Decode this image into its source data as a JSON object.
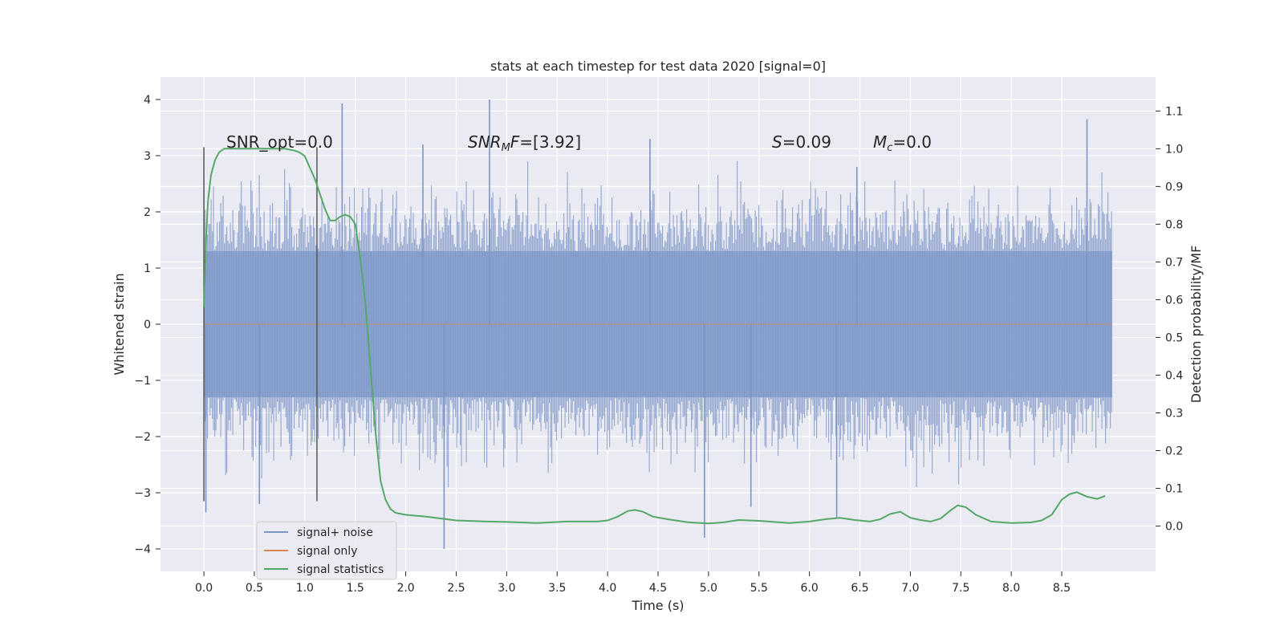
{
  "chart_data": {
    "type": "line",
    "title": "stats at each timestep for test data 2020 [signal=0]",
    "xlabel": "Time (s)",
    "ylabel": "Whitened strain",
    "y2label": "Detection probability/MF",
    "xlim": [
      -0.43,
      9.43
    ],
    "ylim": [
      -4.4,
      4.4
    ],
    "y2lim": [
      -0.12,
      1.19
    ],
    "x_ticks": [
      0.0,
      0.5,
      1.0,
      1.5,
      2.0,
      2.5,
      3.0,
      3.5,
      4.0,
      4.5,
      5.0,
      5.5,
      6.0,
      6.5,
      7.0,
      7.5,
      8.0,
      8.5
    ],
    "x_tick_labels": [
      "0.0",
      "0.5",
      "1.0",
      "1.5",
      "2.0",
      "2.5",
      "3.0",
      "3.5",
      "4.0",
      "4.5",
      "5.0",
      "5.5",
      "6.0",
      "6.5",
      "7.0",
      "7.5",
      "8.0",
      "8.5"
    ],
    "y_ticks": [
      4,
      3,
      2,
      1,
      0,
      -1,
      -2,
      -3,
      -4
    ],
    "y_tick_labels": [
      "4",
      "3",
      "2",
      "1",
      "0",
      "−1",
      "−2",
      "−3",
      "−4"
    ],
    "y2_ticks": [
      1.1,
      1.0,
      0.9,
      0.8,
      0.7,
      0.6,
      0.5,
      0.4,
      0.3,
      0.2,
      0.1,
      0.0
    ],
    "y2_tick_labels": [
      "1.1",
      "1.0",
      "0.9",
      "0.8",
      "0.7",
      "0.6",
      "0.5",
      "0.4",
      "0.3",
      "0.2",
      "0.1",
      "0.0"
    ],
    "grid": true,
    "legend_position": "lower-left",
    "annotations": {
      "snr_opt": "SNR_opt=0.0",
      "snr_mf_prefix": "SNR",
      "snr_mf_sub": "M",
      "snr_mf_suffix": "F=[3.92]",
      "s_prefix": "S",
      "s_value": "=0.09",
      "mc_prefix": "M",
      "mc_sub": "c",
      "mc_value": "=0.0"
    },
    "vertical_lines": [
      {
        "x": 0.0,
        "y_range": [
          -3.15,
          3.15
        ],
        "color": "#555555"
      },
      {
        "x": 1.12,
        "y_range": [
          -3.15,
          3.15
        ],
        "color": "#555555"
      }
    ],
    "series": [
      {
        "name": "signal+ noise",
        "color": "#7b95c7",
        "axis": "left",
        "kind": "noise",
        "x_range": [
          0.0,
          9.0
        ],
        "core_band": [
          -1.3,
          1.3
        ],
        "typical_peak_range": [
          -2.4,
          2.4
        ],
        "extreme_peaks": [
          {
            "x": 0.02,
            "y": -3.35
          },
          {
            "x": 1.37,
            "y": 3.93
          },
          {
            "x": 2.83,
            "y": 4.0
          },
          {
            "x": 2.38,
            "y": -4.0
          },
          {
            "x": 8.75,
            "y": 3.65
          },
          {
            "x": 4.42,
            "y": 3.3
          },
          {
            "x": 4.96,
            "y": -3.8
          },
          {
            "x": 2.17,
            "y": 3.2
          },
          {
            "x": 6.27,
            "y": -3.45
          },
          {
            "x": 5.42,
            "y": -3.25
          },
          {
            "x": 6.47,
            "y": 2.8
          },
          {
            "x": 0.55,
            "y": -3.2
          }
        ]
      },
      {
        "name": "signal only",
        "color": "#dd8452",
        "axis": "left",
        "kind": "flat",
        "x": [
          0.0,
          9.0
        ],
        "y": [
          0.0,
          0.0
        ]
      },
      {
        "name": "signal statistics",
        "color": "#55a868",
        "axis": "right",
        "kind": "line",
        "x": [
          0.0,
          0.02,
          0.04,
          0.07,
          0.11,
          0.15,
          0.2,
          0.3,
          0.4,
          0.5,
          0.6,
          0.7,
          0.8,
          0.9,
          0.95,
          1.0,
          1.05,
          1.1,
          1.15,
          1.2,
          1.25,
          1.3,
          1.35,
          1.4,
          1.45,
          1.5,
          1.55,
          1.6,
          1.65,
          1.7,
          1.75,
          1.8,
          1.85,
          1.9,
          2.0,
          2.2,
          2.5,
          2.8,
          3.0,
          3.3,
          3.6,
          3.9,
          4.0,
          4.1,
          4.2,
          4.27,
          4.35,
          4.45,
          4.6,
          4.8,
          5.0,
          5.15,
          5.3,
          5.5,
          5.8,
          6.0,
          6.15,
          6.3,
          6.45,
          6.6,
          6.7,
          6.8,
          6.9,
          7.0,
          7.1,
          7.2,
          7.3,
          7.4,
          7.47,
          7.55,
          7.65,
          7.8,
          8.0,
          8.2,
          8.3,
          8.4,
          8.5,
          8.58,
          8.65,
          8.75,
          8.85,
          8.93
        ],
        "y": [
          0.58,
          0.75,
          0.86,
          0.93,
          0.97,
          0.99,
          1.0,
          1.0,
          1.0,
          1.0,
          1.0,
          1.0,
          1.0,
          0.995,
          0.99,
          0.98,
          0.95,
          0.92,
          0.88,
          0.84,
          0.81,
          0.81,
          0.82,
          0.825,
          0.82,
          0.8,
          0.71,
          0.59,
          0.42,
          0.25,
          0.12,
          0.07,
          0.045,
          0.035,
          0.03,
          0.025,
          0.015,
          0.012,
          0.011,
          0.008,
          0.012,
          0.012,
          0.015,
          0.025,
          0.04,
          0.043,
          0.038,
          0.025,
          0.018,
          0.01,
          0.007,
          0.01,
          0.016,
          0.014,
          0.008,
          0.012,
          0.018,
          0.022,
          0.016,
          0.012,
          0.018,
          0.032,
          0.038,
          0.022,
          0.016,
          0.012,
          0.02,
          0.042,
          0.055,
          0.05,
          0.03,
          0.012,
          0.008,
          0.01,
          0.015,
          0.03,
          0.07,
          0.085,
          0.09,
          0.078,
          0.072,
          0.08
        ]
      }
    ]
  }
}
